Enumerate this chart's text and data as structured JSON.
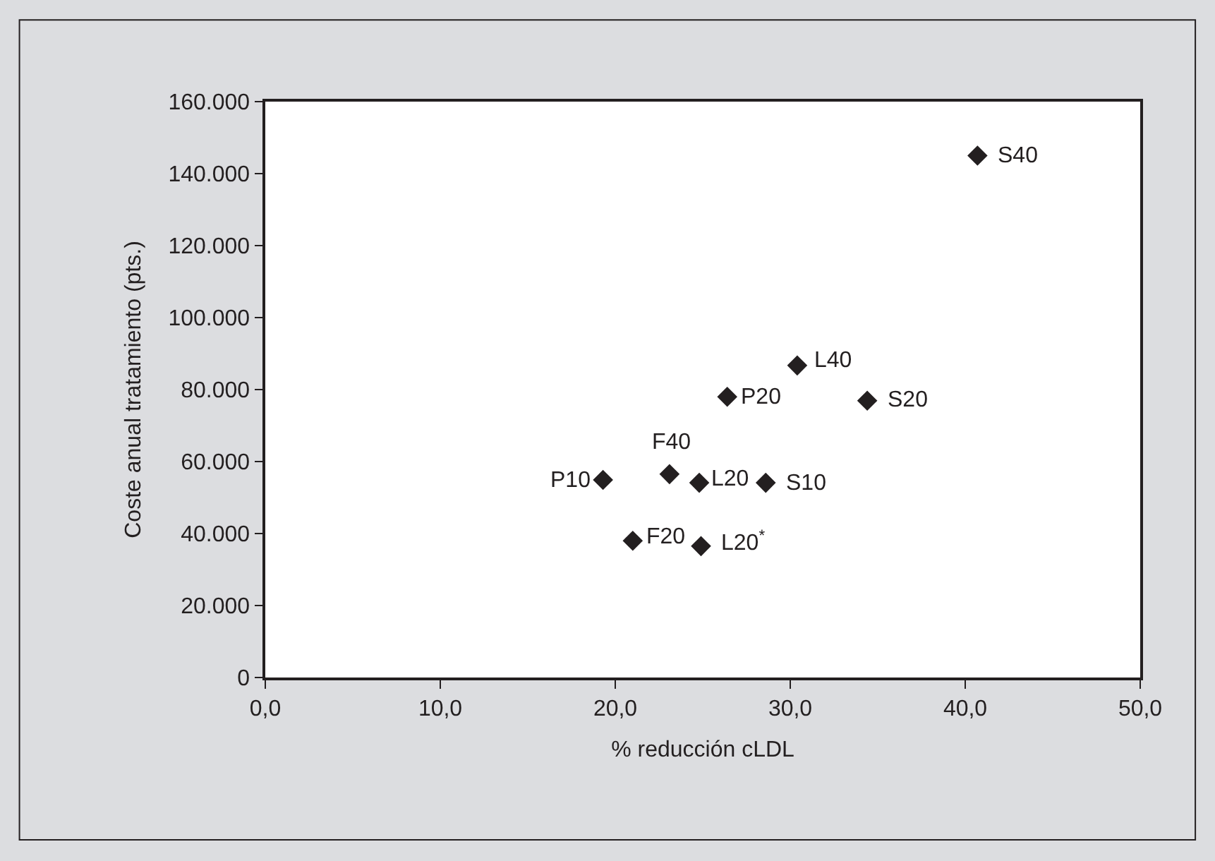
{
  "chart_data": {
    "type": "scatter",
    "xlabel": "% reducción cLDL",
    "ylabel": "Coste anual tratamiento (pts.)",
    "x": [
      40.7,
      30.4,
      26.4,
      34.4,
      19.3,
      23.1,
      24.8,
      28.6,
      21.0,
      24.9
    ],
    "series": [
      {
        "color": "#231f20",
        "values": [
          145000,
          86700,
          78000,
          76900,
          54900,
          56500,
          54100,
          54100,
          38000,
          36500
        ]
      }
    ],
    "annotations": [
      {
        "text": "S40",
        "x": 40.7,
        "y": 145000
      },
      {
        "text": "L40",
        "x": 30.4,
        "y": 86700
      },
      {
        "text": "P20",
        "x": 26.4,
        "y": 78000
      },
      {
        "text": "S20",
        "x": 34.4,
        "y": 76900
      },
      {
        "text": "P10",
        "x": 19.3,
        "y": 54900
      },
      {
        "text": "F40",
        "x": 23.1,
        "y": 56500
      },
      {
        "text": "L20",
        "x": 24.8,
        "y": 54100
      },
      {
        "text": "S10",
        "x": 28.6,
        "y": 54100
      },
      {
        "text": "F20",
        "x": 21.0,
        "y": 38000
      },
      {
        "text": "L20$^{*}$",
        "x": 24.9,
        "y": 36500
      }
    ],
    "xlim": [
      0,
      50
    ],
    "ylim": [
      0,
      160000
    ],
    "xticks": [
      {
        "value": 0,
        "label": "0,0"
      },
      {
        "value": 10,
        "label": "10,0"
      },
      {
        "value": 20,
        "label": "20,0"
      },
      {
        "value": 30,
        "label": "30,0"
      },
      {
        "value": 40,
        "label": "40,0"
      },
      {
        "value": 50,
        "label": "50,0"
      }
    ],
    "yticks": [
      0,
      {
        "value": 20000,
        "label": "20.000"
      },
      {
        "value": 40000,
        "label": "40.000"
      },
      {
        "value": 60000,
        "label": "60.000"
      },
      {
        "value": 80000,
        "label": "80.000"
      },
      {
        "value": 100000,
        "label": "100.000"
      },
      {
        "value": 120000,
        "label": "120.000"
      },
      {
        "value": 140000,
        "label": "140.000"
      },
      {
        "value": 160000,
        "label": "160.000"
      }
    ],
    "marker": "diamond"
  }
}
